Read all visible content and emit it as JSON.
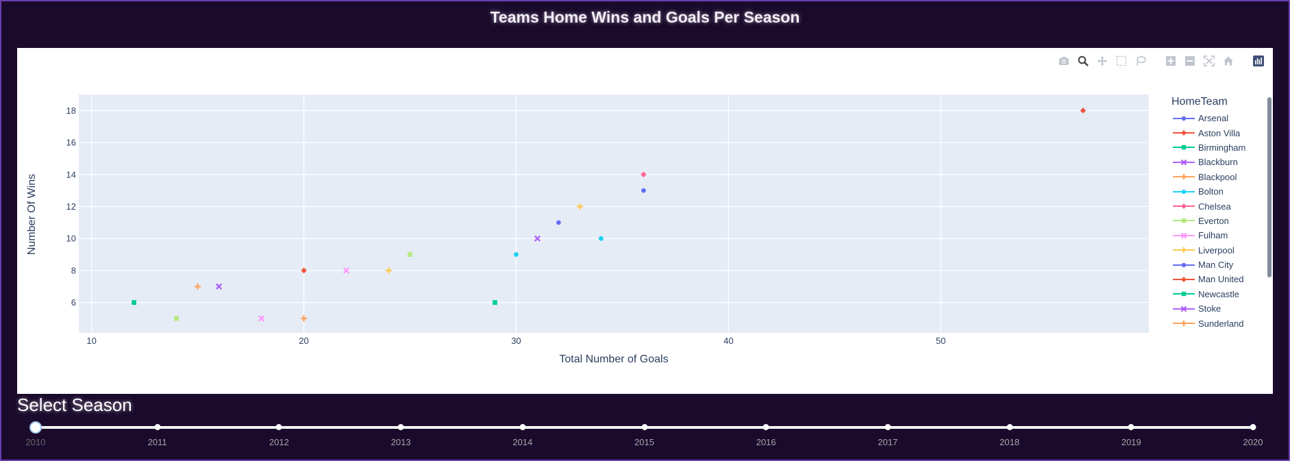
{
  "page": {
    "title": "Teams Home Wins and Goals Per Season"
  },
  "modebar": {
    "icons": [
      "camera-icon",
      "zoom-icon",
      "pan-icon",
      "box-select-icon",
      "lasso-select-icon",
      "zoom-in-icon",
      "zoom-out-icon",
      "autoscale-icon",
      "reset-axes-icon",
      "plotly-logo-icon"
    ]
  },
  "chart_data": {
    "type": "scatter",
    "xlabel": "Total Number of Goals",
    "ylabel": "Number Of Wins",
    "xlim": [
      9.4,
      59.8
    ],
    "ylim": [
      4.1,
      19.0
    ],
    "xticks": [
      10,
      20,
      30,
      40,
      50
    ],
    "yticks": [
      6,
      8,
      10,
      12,
      14,
      16,
      18
    ],
    "grid": true,
    "legend_title": "HomeTeam",
    "legend_position": "right",
    "series": [
      {
        "name": "Arsenal",
        "color": "#636efa",
        "symbol": "circle",
        "points": [
          [
            32,
            11
          ],
          [
            36,
            13
          ]
        ]
      },
      {
        "name": "Aston Villa",
        "color": "#EF553B",
        "symbol": "diamond",
        "points": [
          [
            20,
            8
          ],
          [
            56.7,
            18
          ]
        ]
      },
      {
        "name": "Birmingham",
        "color": "#00cc96",
        "symbol": "square",
        "points": [
          [
            12,
            6
          ],
          [
            29,
            6
          ]
        ]
      },
      {
        "name": "Blackburn",
        "color": "#ab63fa",
        "symbol": "x",
        "points": [
          [
            16,
            7
          ],
          [
            31,
            10
          ]
        ]
      },
      {
        "name": "Blackpool",
        "color": "#FFA15A",
        "symbol": "cross",
        "points": [
          [
            15,
            7
          ],
          [
            20,
            5
          ]
        ]
      },
      {
        "name": "Bolton",
        "color": "#19d3f3",
        "symbol": "circle",
        "points": [
          [
            30,
            9
          ],
          [
            34,
            10
          ]
        ]
      },
      {
        "name": "Chelsea",
        "color": "#FF6692",
        "symbol": "diamond",
        "points": [
          [
            36,
            14
          ]
        ]
      },
      {
        "name": "Everton",
        "color": "#B6E880",
        "symbol": "square",
        "points": [
          [
            14,
            5
          ],
          [
            25,
            9
          ]
        ]
      },
      {
        "name": "Fulham",
        "color": "#FF97FF",
        "symbol": "x",
        "points": [
          [
            18,
            5
          ],
          [
            22,
            8
          ]
        ]
      },
      {
        "name": "Liverpool",
        "color": "#FECB52",
        "symbol": "cross",
        "points": [
          [
            24,
            8
          ],
          [
            33,
            12
          ]
        ]
      },
      {
        "name": "Man City",
        "color": "#636efa",
        "symbol": "circle",
        "points": []
      },
      {
        "name": "Man United",
        "color": "#EF553B",
        "symbol": "diamond",
        "points": []
      },
      {
        "name": "Newcastle",
        "color": "#00cc96",
        "symbol": "square",
        "points": []
      },
      {
        "name": "Stoke",
        "color": "#ab63fa",
        "symbol": "x",
        "points": []
      },
      {
        "name": "Sunderland",
        "color": "#FFA15A",
        "symbol": "cross",
        "points": []
      }
    ]
  },
  "slider": {
    "label": "Select Season",
    "marks": [
      "2010",
      "2011",
      "2012",
      "2013",
      "2014",
      "2015",
      "2016",
      "2017",
      "2018",
      "2019",
      "2020"
    ],
    "selected": "2010"
  }
}
